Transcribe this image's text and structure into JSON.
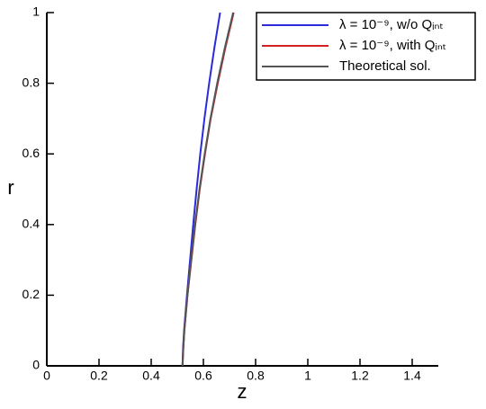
{
  "chart_data": {
    "type": "line",
    "xlabel": "z",
    "ylabel": "r",
    "xlim": [
      0,
      1.5
    ],
    "ylim": [
      0,
      1
    ],
    "xticks": [
      0,
      0.2,
      0.4,
      0.6,
      0.8,
      1,
      1.2,
      1.4
    ],
    "yticks": [
      0,
      0.2,
      0.4,
      0.6,
      0.8,
      1
    ],
    "legend": "upper right",
    "series": [
      {
        "name": "λ = 10⁻⁹, w/o Qᵢₙₜ",
        "color": "#2b2bd9",
        "x": [
          0.52,
          0.522,
          0.526,
          0.537,
          0.549,
          0.561,
          0.574,
          0.588,
          0.604,
          0.622,
          0.642,
          0.664
        ],
        "values": [
          0,
          0.05,
          0.1,
          0.2,
          0.3,
          0.4,
          0.5,
          0.6,
          0.7,
          0.8,
          0.9,
          1
        ]
      },
      {
        "name": "λ = 10⁻⁹, with Qᵢₙₜ",
        "color": "#d42020",
        "x": [
          0.52,
          0.523,
          0.527,
          0.539,
          0.554,
          0.569,
          0.586,
          0.606,
          0.628,
          0.655,
          0.684,
          0.716
        ],
        "values": [
          0,
          0.05,
          0.1,
          0.2,
          0.3,
          0.4,
          0.5,
          0.6,
          0.7,
          0.8,
          0.9,
          1
        ]
      },
      {
        "name": "Theoretical sol.",
        "color": "#555555",
        "x": [
          0.52,
          0.523,
          0.527,
          0.539,
          0.553,
          0.568,
          0.585,
          0.605,
          0.627,
          0.653,
          0.682,
          0.714
        ],
        "values": [
          0,
          0.05,
          0.1,
          0.2,
          0.3,
          0.4,
          0.5,
          0.6,
          0.7,
          0.8,
          0.9,
          1
        ]
      }
    ]
  }
}
